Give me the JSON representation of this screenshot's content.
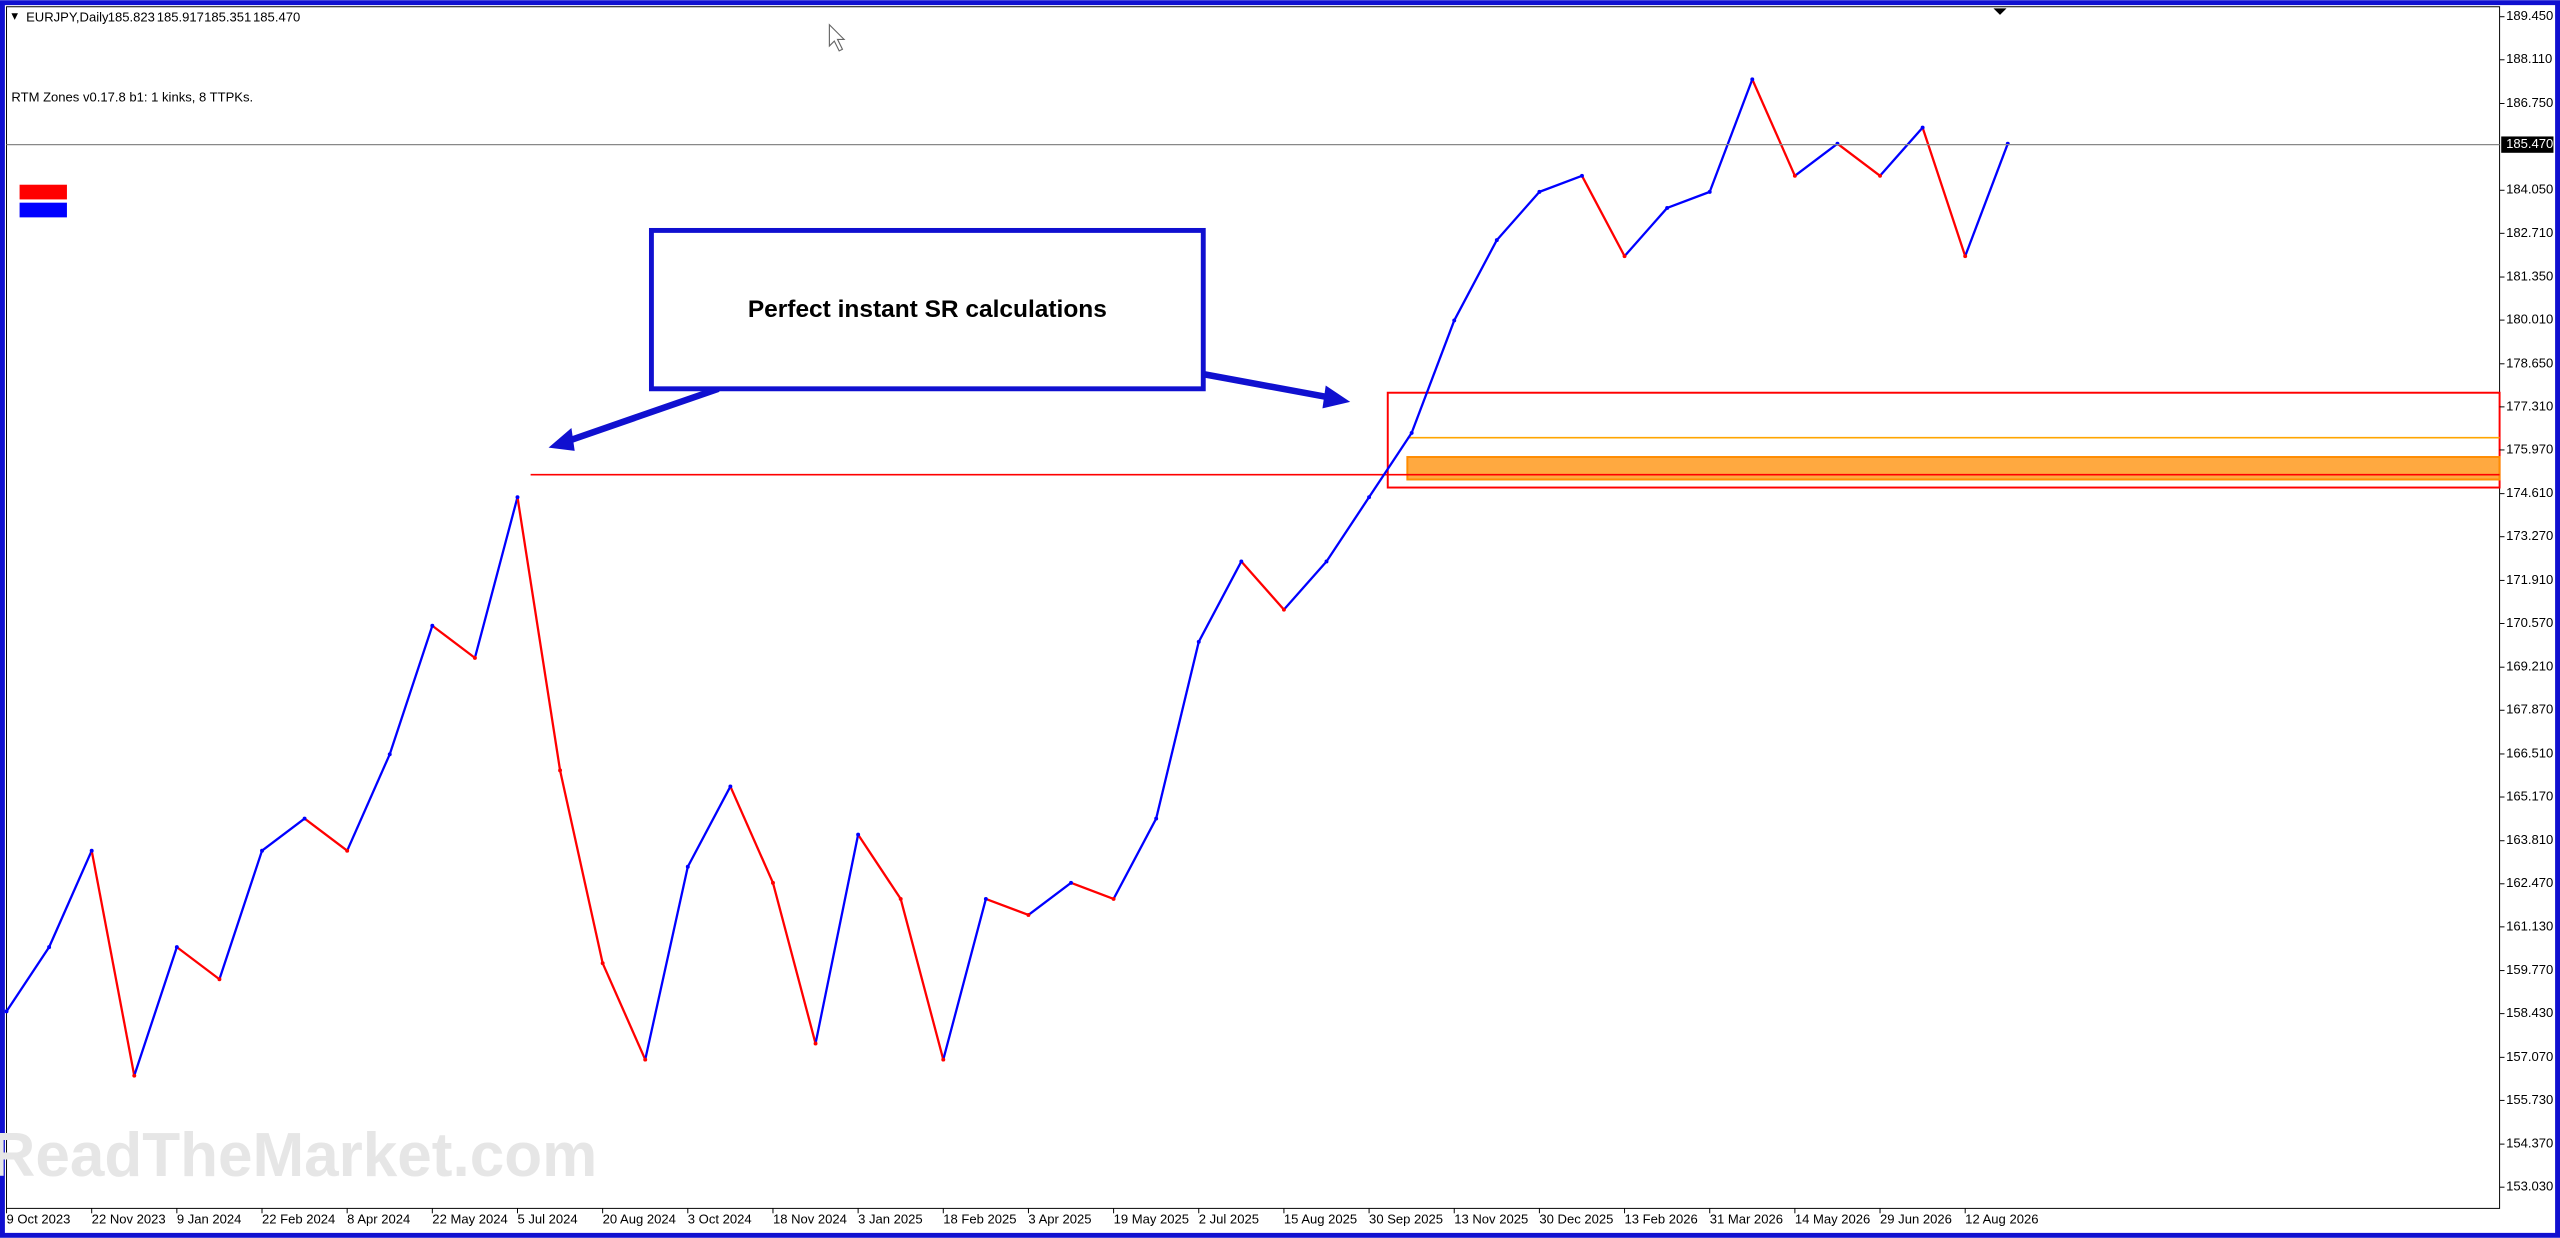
{
  "chart_data": {
    "type": "line",
    "title": "EURJPY,Daily",
    "ohlc": [
      {
        "value": 185.823,
        "label": "185.823"
      },
      {
        "value": 185.917,
        "label": "185.917"
      },
      {
        "value": 185.351,
        "label": "185.351"
      },
      {
        "value": 185.47,
        "label": "185.470"
      }
    ],
    "indicator": "RTM Zones v0.17.8 b1: 1 kinks, 8 TTPKs.",
    "annotation": "Perfect instant SR calculations",
    "watermark": "ReadTheMarket.com",
    "categories": [
      "9 Oct 2023",
      null,
      "22 Nov 2023",
      null,
      "9 Jan 2024",
      null,
      "22 Feb 2024",
      null,
      "8 Apr 2024",
      null,
      "22 May 2024",
      null,
      "5 Jul 2024",
      null,
      "20 Aug 2024",
      null,
      "3 Oct 2024",
      null,
      "18 Nov 2024",
      null,
      "3 Jan 2025",
      null,
      "18 Feb 2025",
      null,
      "3 Apr 2025",
      null,
      "19 May 2025",
      null,
      "2 Jul 2025",
      null,
      "15 Aug 2025",
      null,
      "30 Sep 2025",
      null,
      "13 Nov 2025",
      null,
      "30 Dec 2025",
      null,
      "13 Feb 2026",
      null,
      "31 Mar 2026",
      null,
      "14 May 2026",
      null,
      "29 Jun 2026",
      null,
      "12 Aug 2026",
      null
    ],
    "values": [
      158.5,
      160.5,
      163.5,
      156.5,
      160.5,
      159.5,
      163.5,
      164.5,
      163.5,
      166.5,
      170.5,
      169.5,
      174.5,
      166.0,
      160.0,
      157.0,
      163.0,
      165.5,
      162.5,
      157.5,
      164.0,
      162.0,
      157.0,
      162.0,
      161.5,
      162.5,
      162.0,
      164.5,
      170.0,
      172.5,
      171.0,
      172.5,
      174.5,
      176.5,
      180.0,
      182.5,
      184.0,
      184.5,
      182.0,
      183.5,
      184.0,
      187.5,
      184.5,
      185.5,
      184.5,
      186.0,
      182.0,
      185.5
    ],
    "up_color": "#0000ff",
    "down_color": "#ff0000",
    "ylim": [
      152.37,
      189.76
    ],
    "yticks": [
      {
        "value": 189.45,
        "label": "189.450"
      },
      {
        "value": 188.11,
        "label": "188.110"
      },
      {
        "value": 186.75,
        "label": "186.750"
      },
      {
        "value": 184.05,
        "label": "184.050"
      },
      {
        "value": 182.71,
        "label": "182.710"
      },
      {
        "value": 181.35,
        "label": "181.350"
      },
      {
        "value": 180.01,
        "label": "180.010"
      },
      {
        "value": 178.65,
        "label": "178.650"
      },
      {
        "value": 177.31,
        "label": "177.310"
      },
      {
        "value": 175.97,
        "label": "175.970"
      },
      {
        "value": 174.61,
        "label": "174.610"
      },
      {
        "value": 173.27,
        "label": "173.270"
      },
      {
        "value": 171.91,
        "label": "171.910"
      },
      {
        "value": 170.57,
        "label": "170.570"
      },
      {
        "value": 169.21,
        "label": "169.210"
      },
      {
        "value": 167.87,
        "label": "167.870"
      },
      {
        "value": 166.51,
        "label": "166.510"
      },
      {
        "value": 165.17,
        "label": "165.170"
      },
      {
        "value": 163.81,
        "label": "163.810"
      },
      {
        "value": 162.47,
        "label": "162.470"
      },
      {
        "value": 161.13,
        "label": "161.130"
      },
      {
        "value": 159.77,
        "label": "159.770"
      },
      {
        "value": 158.43,
        "label": "158.430"
      },
      {
        "value": 157.07,
        "label": "157.070"
      },
      {
        "value": 155.73,
        "label": "155.730"
      },
      {
        "value": 154.37,
        "label": "154.370"
      },
      {
        "value": 153.03,
        "label": "153.030"
      }
    ],
    "zones": [
      {
        "top": 177.75,
        "bottom": 174.8,
        "color": "#ff0000",
        "fill": false
      },
      {
        "top": 175.75,
        "bottom": 175.05,
        "color": "#ff8c00",
        "fill": true
      }
    ],
    "levels": [
      {
        "value": 175.2,
        "color": "#ff0000"
      },
      {
        "value": 176.35,
        "color": "#ffa500"
      }
    ]
  }
}
